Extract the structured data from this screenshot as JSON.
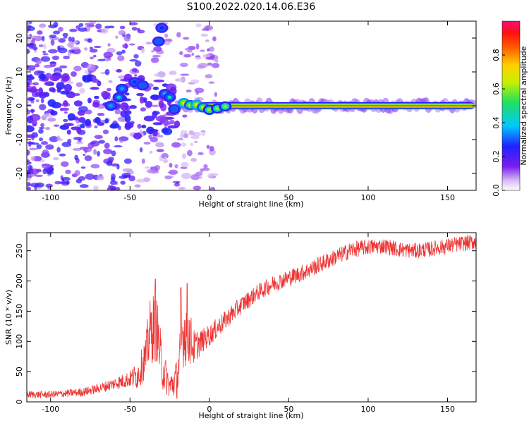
{
  "figure_title": "S100.2022.020.14.06.E36",
  "chart_data": [
    {
      "type": "heatmap",
      "title": "",
      "xlabel": "Height of straight line (km)",
      "ylabel": "Frequency (Hz)",
      "xlim": [
        -115,
        168
      ],
      "ylim": [
        -25,
        25
      ],
      "x_ticks": [
        -100,
        -50,
        0,
        50,
        100,
        150
      ],
      "y_ticks": [
        -20,
        -10,
        0,
        10,
        20
      ],
      "colorbar": {
        "label": "Normalized spectral amplitude",
        "range": [
          0.0,
          1.0
        ],
        "ticks": [
          0.0,
          0.2,
          0.4,
          0.6,
          0.8
        ],
        "colormap": "rainbow (violet-blue-cyan-green-yellow-orange-red-pink)"
      },
      "features": {
        "stable_line_frequency_hz": 0,
        "stable_line_start_km": -18,
        "stable_line_end_km": 168,
        "stable_line_peak_amplitude": 0.9,
        "track_points": [
          {
            "x": -62,
            "y": 0,
            "amp": 0.35
          },
          {
            "x": -57,
            "y": 2.5,
            "amp": 0.4
          },
          {
            "x": -55,
            "y": 5,
            "amp": 0.35
          },
          {
            "x": -47,
            "y": 7,
            "amp": 0.25
          },
          {
            "x": -42,
            "y": 6,
            "amp": 0.3
          },
          {
            "x": -32,
            "y": 19,
            "amp": 0.3
          },
          {
            "x": -30,
            "y": 23,
            "amp": 0.25
          },
          {
            "x": -28,
            "y": 3.5,
            "amp": 0.4
          },
          {
            "x": -25,
            "y": 2.5,
            "amp": 0.45
          },
          {
            "x": -22,
            "y": -1,
            "amp": 0.3
          },
          {
            "x": -16,
            "y": 0.8,
            "amp": 0.7
          },
          {
            "x": -12,
            "y": 0.2,
            "amp": 0.65
          },
          {
            "x": -8,
            "y": 0.3,
            "amp": 0.7
          },
          {
            "x": -4,
            "y": -0.5,
            "amp": 0.65
          },
          {
            "x": 0,
            "y": -1.2,
            "amp": 0.6
          },
          {
            "x": 5,
            "y": -0.8,
            "amp": 0.6
          },
          {
            "x": 10,
            "y": -0.2,
            "amp": 0.6
          }
        ]
      }
    },
    {
      "type": "line",
      "title": "",
      "xlabel": "Height of straight line (km)",
      "ylabel": "SNR (10 * v/v)",
      "xlim": [
        -115,
        168
      ],
      "ylim": [
        0,
        280
      ],
      "x_ticks": [
        -100,
        -50,
        0,
        50,
        100,
        150
      ],
      "y_ticks": [
        0,
        50,
        100,
        150,
        200,
        250
      ],
      "series": [
        {
          "color": "#ee3333",
          "trend_x": [
            -115,
            -100,
            -80,
            -70,
            -60,
            -50,
            -45,
            -40,
            -38,
            -35,
            -33,
            -30,
            -25,
            -20,
            -17,
            -14,
            -10,
            -5,
            0,
            10,
            20,
            30,
            40,
            50,
            60,
            70,
            80,
            90,
            100,
            110,
            120,
            130,
            140,
            150,
            160,
            168
          ],
          "trend_y": [
            12,
            12,
            16,
            22,
            30,
            38,
            45,
            75,
            110,
            125,
            120,
            60,
            25,
            40,
            110,
            120,
            90,
            100,
            110,
            135,
            160,
            180,
            195,
            205,
            215,
            228,
            240,
            252,
            256,
            258,
            252,
            250,
            253,
            258,
            262,
            265
          ],
          "noise_amplitude": [
            6,
            6,
            7,
            8,
            10,
            14,
            25,
            35,
            55,
            60,
            55,
            40,
            20,
            35,
            55,
            60,
            30,
            20,
            18,
            16,
            15,
            14,
            14,
            14,
            14,
            14,
            14,
            14,
            13,
            13,
            13,
            13,
            13,
            13,
            13,
            13
          ],
          "spike_peaks": [
            {
              "x": -34,
              "y": 203
            },
            {
              "x": -18,
              "y": 189
            },
            {
              "x": -14,
              "y": 196
            }
          ]
        }
      ]
    }
  ]
}
